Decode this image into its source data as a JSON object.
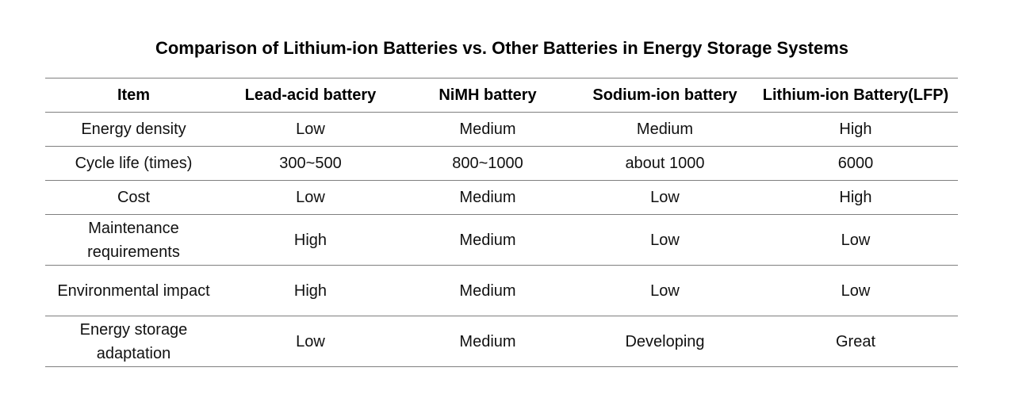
{
  "title": "Comparison of Lithium-ion Batteries vs. Other Batteries in Energy Storage Systems",
  "table": {
    "headers": [
      "Item",
      "Lead-acid battery",
      "NiMH battery",
      "Sodium-ion battery",
      "Lithium-ion Battery(LFP)"
    ],
    "rows": [
      [
        "Energy density",
        "Low",
        "Medium",
        "Medium",
        "High"
      ],
      [
        "Cycle life (times)",
        "300~500",
        "800~1000",
        "about 1000",
        "6000"
      ],
      [
        "Cost",
        "Low",
        "Medium",
        "Low",
        "High"
      ],
      [
        "Maintenance requirements",
        "High",
        "Medium",
        "Low",
        "Low"
      ],
      [
        "Environmental impact",
        "High",
        "Medium",
        "Low",
        "Low"
      ],
      [
        "Energy storage adaptation",
        "Low",
        "Medium",
        "Developing",
        "Great"
      ]
    ]
  }
}
